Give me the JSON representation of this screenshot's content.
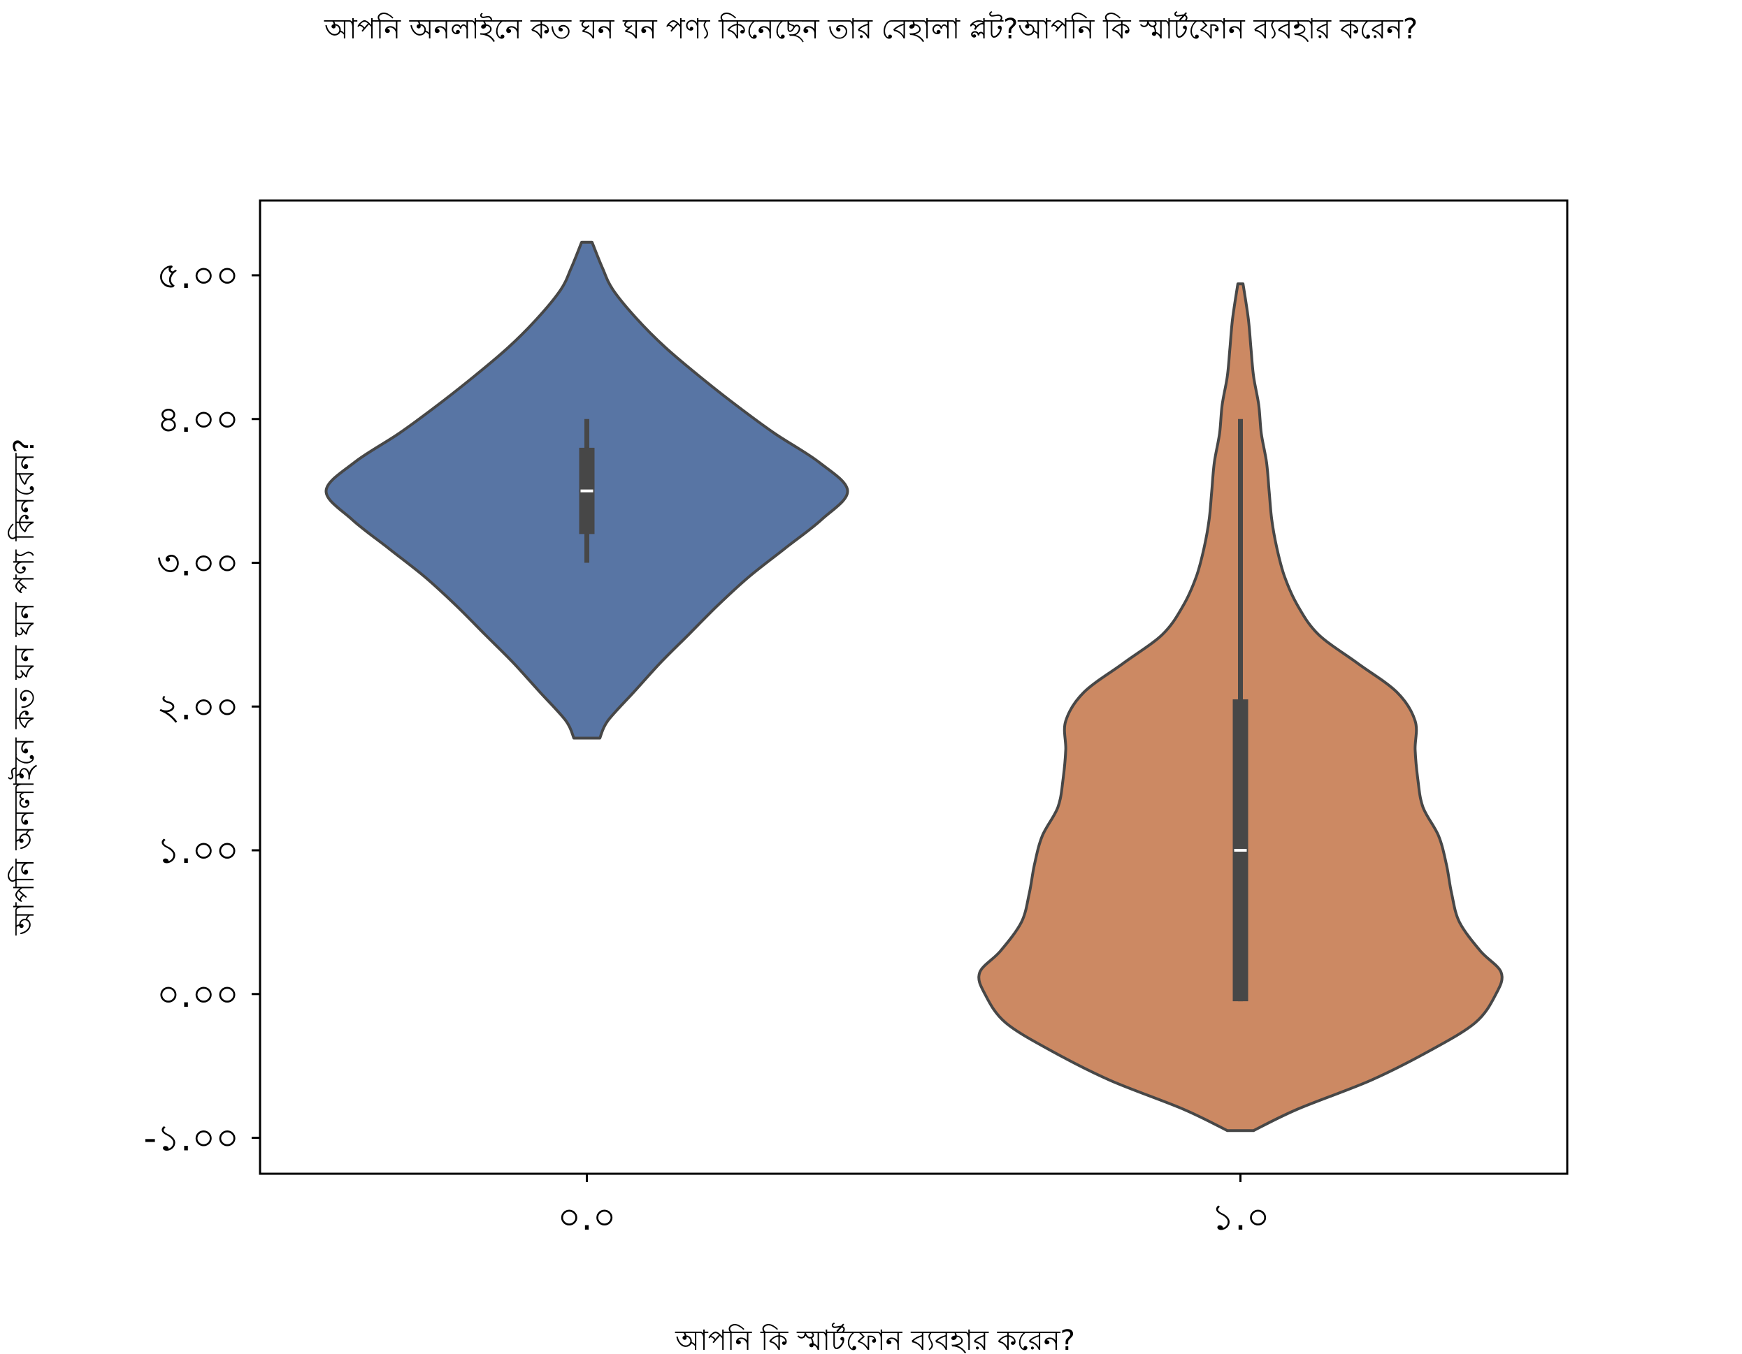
{
  "chart_data": {
    "type": "violin",
    "title": "আপনি অনলাইনে কত ঘন ঘন পণ্য কিনেছেন তার বেহালা প্লট?আপনি কি স্মার্টফোন ব্যবহার করেন?",
    "xlabel": "আপনি কি স্মার্টফোন ব্যবহার করেন?",
    "ylabel": "আপনি অনলাইনে কত ঘন ঘন পণ্য কিনবেন?",
    "categories": [
      "০.০",
      "১.০"
    ],
    "yticks": [
      -1,
      0,
      1,
      2,
      3,
      4,
      5
    ],
    "ytick_labels": [
      "-১.০০",
      "০.০০",
      "১.০০",
      "২.০০",
      "৩.০০",
      "৪.০০",
      "৫.০০"
    ],
    "ylim": [
      -1.25,
      5.52
    ],
    "grid": false,
    "legend": "none",
    "series": [
      {
        "category": "০.০",
        "color": "#5875a4",
        "edge_color": "#474747",
        "violin_range": [
          1.78,
          5.23
        ],
        "density_profile": [
          [
            1.78,
            0.05
          ],
          [
            1.9,
            0.08
          ],
          [
            2.1,
            0.18
          ],
          [
            2.3,
            0.28
          ],
          [
            2.5,
            0.39
          ],
          [
            2.7,
            0.5
          ],
          [
            2.9,
            0.62
          ],
          [
            3.1,
            0.76
          ],
          [
            3.3,
            0.9
          ],
          [
            3.5,
            1.0
          ],
          [
            3.7,
            0.89
          ],
          [
            3.9,
            0.72
          ],
          [
            4.1,
            0.57
          ],
          [
            4.3,
            0.43
          ],
          [
            4.5,
            0.3
          ],
          [
            4.7,
            0.19
          ],
          [
            4.9,
            0.1
          ],
          [
            5.05,
            0.06
          ],
          [
            5.23,
            0.02
          ]
        ],
        "box": {
          "q1": 3.2,
          "median": 3.5,
          "q3": 3.8,
          "whisker_low": 3.0,
          "whisker_high": 4.0
        }
      },
      {
        "category": "১.০",
        "color": "#cc8963",
        "edge_color": "#474747",
        "violin_range": [
          -0.95,
          4.94
        ],
        "density_profile": [
          [
            -0.95,
            0.05
          ],
          [
            -0.8,
            0.22
          ],
          [
            -0.6,
            0.5
          ],
          [
            -0.4,
            0.72
          ],
          [
            -0.2,
            0.9
          ],
          [
            0.0,
            0.98
          ],
          [
            0.15,
            1.0
          ],
          [
            0.3,
            0.92
          ],
          [
            0.5,
            0.84
          ],
          [
            0.7,
            0.81
          ],
          [
            0.9,
            0.79
          ],
          [
            1.1,
            0.76
          ],
          [
            1.3,
            0.7
          ],
          [
            1.5,
            0.68
          ],
          [
            1.7,
            0.67
          ],
          [
            1.9,
            0.67
          ],
          [
            2.1,
            0.6
          ],
          [
            2.3,
            0.45
          ],
          [
            2.5,
            0.3
          ],
          [
            2.7,
            0.22
          ],
          [
            2.9,
            0.17
          ],
          [
            3.1,
            0.14
          ],
          [
            3.3,
            0.12
          ],
          [
            3.5,
            0.11
          ],
          [
            3.7,
            0.1
          ],
          [
            3.9,
            0.08
          ],
          [
            4.1,
            0.07
          ],
          [
            4.3,
            0.05
          ],
          [
            4.5,
            0.04
          ],
          [
            4.7,
            0.03
          ],
          [
            4.94,
            0.01
          ]
        ],
        "box": {
          "q1": -0.05,
          "median": 1.0,
          "q3": 2.05,
          "whisker_low": -0.05,
          "whisker_high": 4.0
        }
      }
    ]
  }
}
